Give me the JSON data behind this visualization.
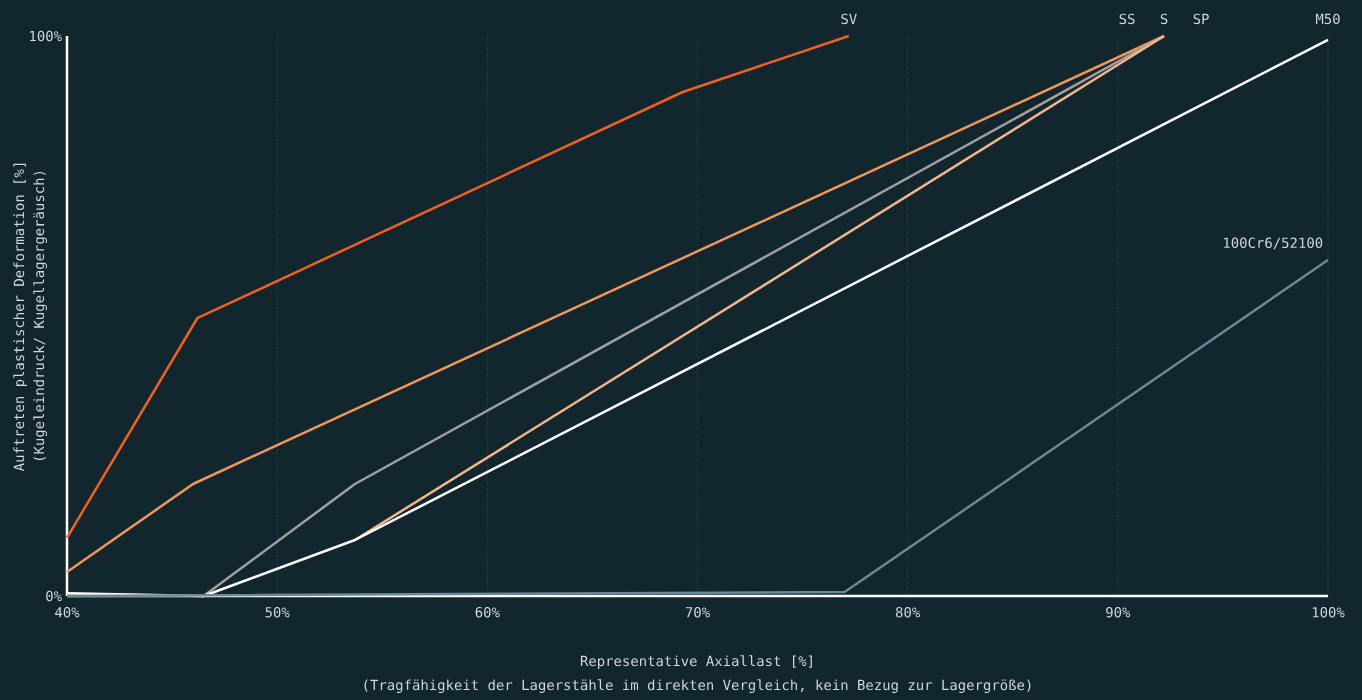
{
  "chart_data": {
    "type": "line",
    "xlabel": "Representative Axiallast [%]",
    "ylabel": "Auftreten plastischer Deformation [%]",
    "annotations": [
      "(Tragfähigkeit der Lagerstähle im direkten Vergleich, kein Bezug zur Lagergröße)",
      "(Kugeleindruck/ Kugellagergeräusch)"
    ],
    "xlim": [
      40,
      100
    ],
    "ylim": [
      0,
      100
    ],
    "xticks": [
      {
        "value": 40,
        "label": "40%"
      },
      {
        "value": 50,
        "label": "50%"
      },
      {
        "value": 60,
        "label": "60%"
      },
      {
        "value": 70,
        "label": "70%"
      },
      {
        "value": 80,
        "label": "80%"
      },
      {
        "value": 90,
        "label": "90%"
      },
      {
        "value": 100,
        "label": "100%"
      }
    ],
    "yticks": [
      {
        "value": 0,
        "label": "0%"
      },
      {
        "value": 100,
        "label": "100%"
      }
    ],
    "grid": "x",
    "line_style": "solid",
    "series": [
      {
        "name": "SV",
        "color": "#f0601f",
        "x": [
          40,
          46.2,
          69.3,
          77.2
        ],
        "values": [
          10.4,
          49.6,
          90,
          100
        ]
      },
      {
        "name": "SS",
        "color": "#f0965a",
        "x": [
          40,
          46,
          92.2
        ],
        "values": [
          4.3,
          20,
          100
        ]
      },
      {
        "name": "S",
        "color": "#a0a0a0",
        "x": [
          40,
          46.5,
          53.7,
          92.2
        ],
        "values": [
          0.3,
          0,
          20,
          100
        ]
      },
      {
        "name": "SP",
        "color": "#f5b48a",
        "x": [
          53.7,
          92.2
        ],
        "values": [
          10,
          100
        ]
      },
      {
        "name": "M50",
        "color": "#ffffff",
        "x": [
          40,
          46.5,
          53.7,
          100
        ],
        "values": [
          0.5,
          0,
          10,
          99.3
        ]
      },
      {
        "name": "100Cr6/52100",
        "color": "#6e8796",
        "x": [
          40,
          77,
          100
        ],
        "values": [
          0,
          0.7,
          60
        ]
      }
    ]
  }
}
